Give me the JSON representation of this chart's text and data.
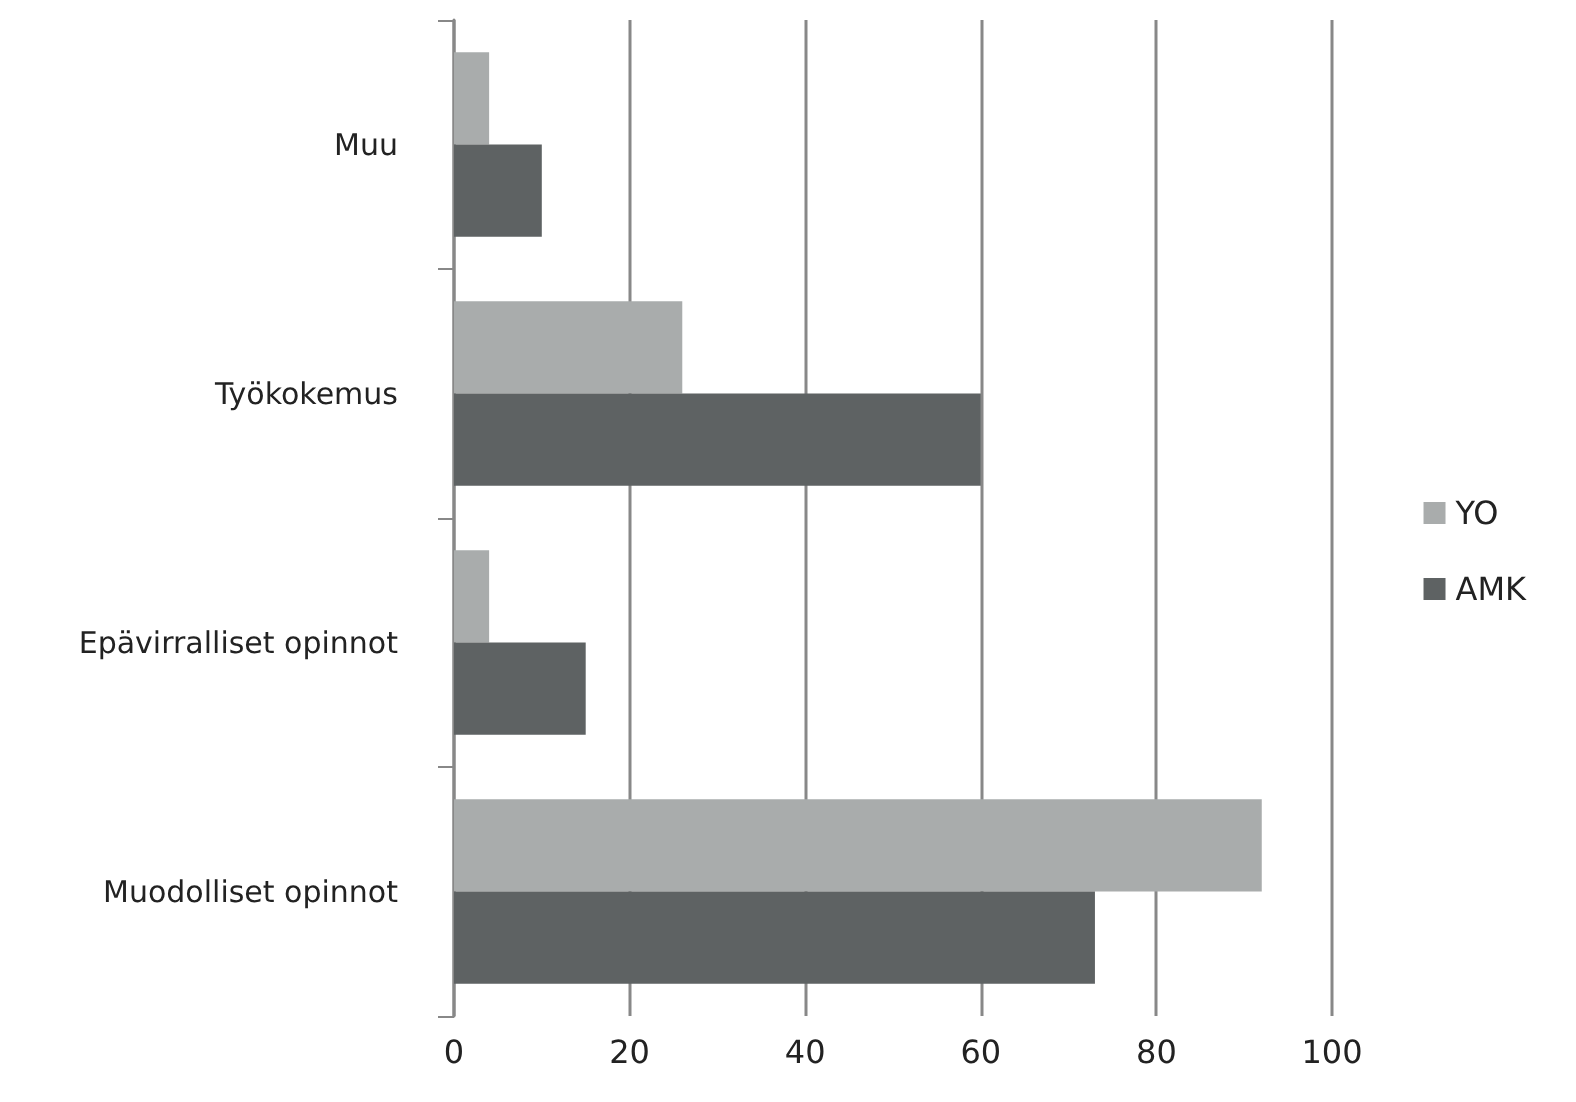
{
  "chart_data": {
    "type": "bar",
    "orientation": "horizontal",
    "categories": [
      "Muu",
      "Työkokemus",
      "Epävirralliset opinnot",
      "Muodolliset opinnot"
    ],
    "series": [
      {
        "name": "YO",
        "color": "#a9acac",
        "values": [
          4,
          26,
          4,
          92
        ]
      },
      {
        "name": "AMK",
        "color": "#5e6263",
        "values": [
          10,
          60,
          15,
          73
        ]
      }
    ],
    "xlim": [
      0,
      100
    ],
    "xticks": [
      0,
      20,
      40,
      60,
      80,
      100
    ],
    "grid": "x",
    "legend": "right"
  }
}
